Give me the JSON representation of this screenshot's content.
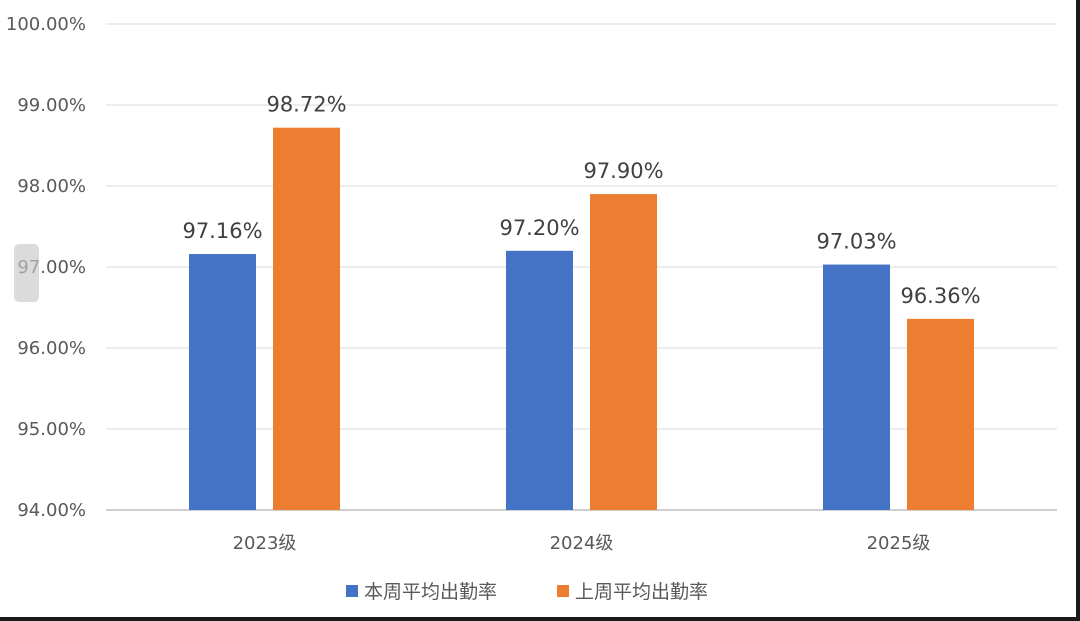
{
  "chart_data": {
    "type": "bar",
    "categories": [
      "2023级",
      "2024级",
      "2025级"
    ],
    "series": [
      {
        "name": "本周平均出勤率",
        "values": [
          97.16,
          97.2,
          97.03
        ],
        "labels": [
          "97.16%",
          "97.20%",
          "97.03%"
        ],
        "color": "#4472C4"
      },
      {
        "name": "上周平均出勤率",
        "values": [
          98.72,
          97.9,
          96.36
        ],
        "labels": [
          "98.72%",
          "97.90%",
          "96.36%"
        ],
        "color": "#ED7D31"
      }
    ],
    "ylim": [
      94,
      100
    ],
    "yticks": [
      "94.00%",
      "95.00%",
      "96.00%",
      "97.00%",
      "98.00%",
      "99.00%",
      "100.00%"
    ],
    "grid": true,
    "legend_position": "bottom",
    "title": "",
    "xlabel": "",
    "ylabel": ""
  }
}
